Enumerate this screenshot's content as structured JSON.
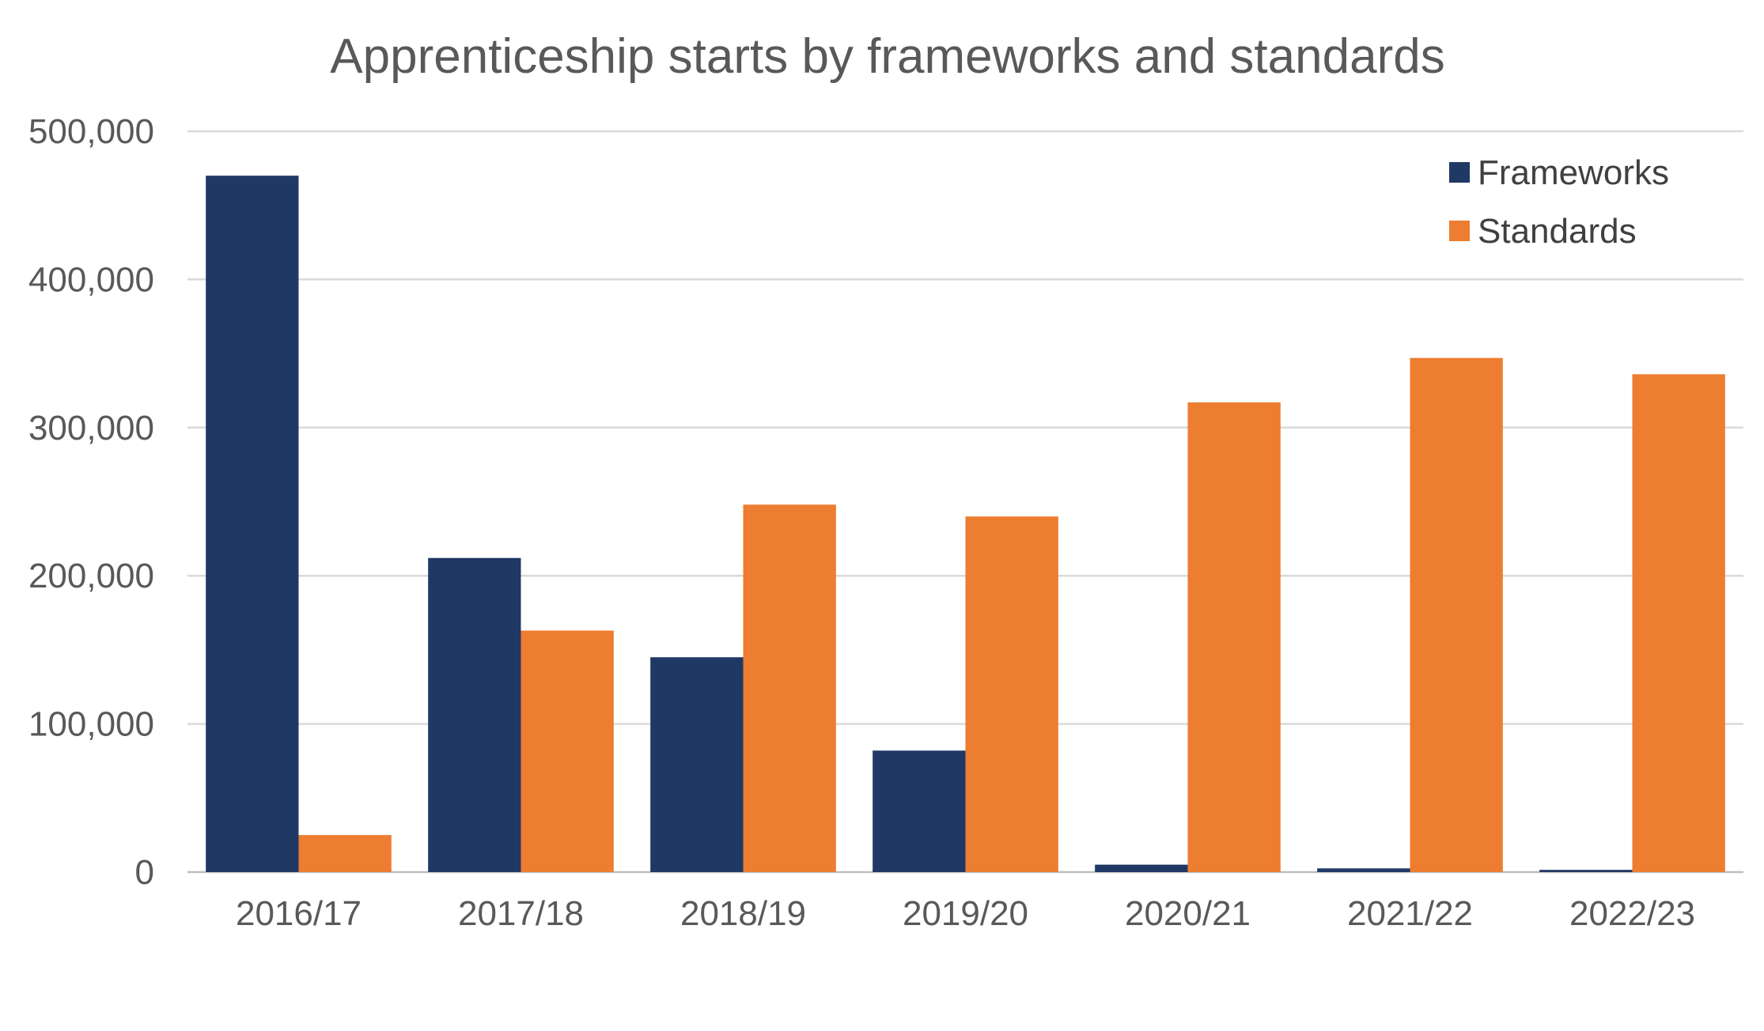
{
  "chart_data": {
    "type": "bar",
    "title": "Apprenticeship starts by frameworks and standards",
    "xlabel": "",
    "ylabel": "",
    "categories": [
      "2016/17",
      "2017/18",
      "2018/19",
      "2019/20",
      "2020/21",
      "2021/22",
      "2022/23"
    ],
    "series": [
      {
        "name": "Frameworks",
        "color": "#203864",
        "values": [
          470000,
          212000,
          145000,
          82000,
          5000,
          2500,
          1500
        ]
      },
      {
        "name": "Standards",
        "color": "#ED7D31",
        "values": [
          25000,
          163000,
          248000,
          240000,
          317000,
          347000,
          336000
        ]
      }
    ],
    "ylim": [
      0,
      500000
    ],
    "yticks": [
      0,
      100000,
      200000,
      300000,
      400000,
      500000
    ],
    "ytick_labels": [
      "0",
      "100,000",
      "200,000",
      "300,000",
      "400,000",
      "500,000"
    ],
    "grid": true,
    "legend_position": "top-right"
  }
}
